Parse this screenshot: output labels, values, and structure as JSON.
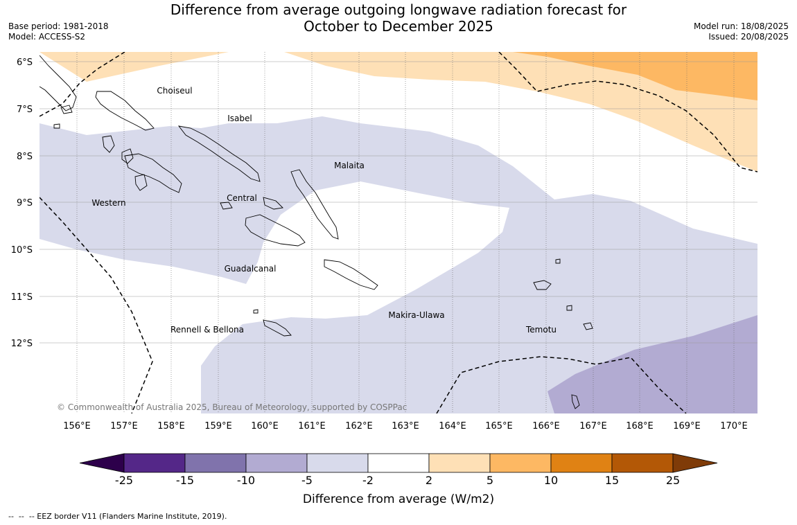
{
  "title": {
    "line1": "Difference from average outgoing longwave radiation forecast for",
    "line2": "October to December 2025"
  },
  "meta": {
    "base_period": "Base period: 1981-2018",
    "model": "Model: ACCESS-S2",
    "model_run": "Model run: 18/08/2025",
    "issued": "Issued: 20/08/2025"
  },
  "map": {
    "lat_labels": [
      "6°S",
      "7°S",
      "8°S",
      "9°S",
      "10°S",
      "11°S",
      "12°S"
    ],
    "lon_labels": [
      "156°E",
      "157°E",
      "158°E",
      "159°E",
      "160°E",
      "161°E",
      "162°E",
      "163°E",
      "164°E",
      "165°E",
      "166°E",
      "167°E",
      "168°E",
      "169°E",
      "170°E"
    ],
    "provinces": [
      {
        "name": "Choiseul"
      },
      {
        "name": "Isabel"
      },
      {
        "name": "Malaita"
      },
      {
        "name": "Central"
      },
      {
        "name": "Western"
      },
      {
        "name": "Guadalcanal"
      },
      {
        "name": "Makira-Ulawa"
      },
      {
        "name": "Rennell & Bellona"
      },
      {
        "name": "Temotu"
      }
    ],
    "copyright": "© Commonwealth of Australia 2025, Bureau of Meteorology, supported by COSPPac"
  },
  "colorbar": {
    "ticks": [
      "-25",
      "-15",
      "-10",
      "-5",
      "-2",
      "2",
      "5",
      "10",
      "15",
      "25"
    ],
    "colors": [
      "#2d004b",
      "#542788",
      "#8073ac",
      "#b2abd2",
      "#d8daeb",
      "#ffffff",
      "#fee0b6",
      "#fdb863",
      "#e08214",
      "#b35806",
      "#7f3b08"
    ],
    "label": "Difference from average (W/m2)"
  },
  "footnote": "--  --  -- EEZ border V11 (Flanders Marine Institute, 2019)."
}
